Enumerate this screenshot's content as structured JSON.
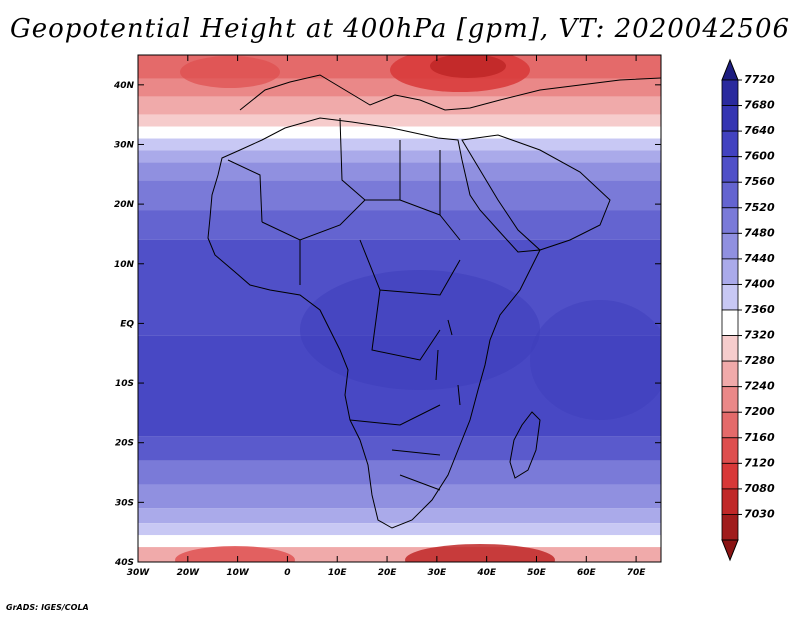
{
  "title": "Geopotential Height at 400hPa [gpm], VT: 2020042506",
  "credit": "GrADS: IGES/COLA",
  "map": {
    "lat_labels": [
      "40N",
      "30N",
      "20N",
      "10N",
      "EQ",
      "10S",
      "20S",
      "30S",
      "40S"
    ],
    "lon_labels": [
      "30W",
      "20W",
      "10W",
      "0",
      "10E",
      "20E",
      "30E",
      "40E",
      "50E",
      "60E",
      "70E"
    ],
    "extent": {
      "lon": [
        -30,
        75
      ],
      "lat": [
        -40,
        45
      ]
    }
  },
  "colorbar": {
    "labels": [
      "7720",
      "7680",
      "7640",
      "7600",
      "7560",
      "7520",
      "7480",
      "7440",
      "7400",
      "7360",
      "7320",
      "7280",
      "7240",
      "7200",
      "7160",
      "7120",
      "7080",
      "7030"
    ],
    "colors": [
      "#2a2a9e",
      "#3535b2",
      "#4242c0",
      "#5050c8",
      "#6464d0",
      "#7a7ad8",
      "#9090e0",
      "#aaaaea",
      "#c8c8f4",
      "#ffffff",
      "#f6cccc",
      "#f0aaaa",
      "#ea8888",
      "#e46a6a",
      "#de4e4e",
      "#d83838",
      "#c02828",
      "#a01c1c"
    ]
  },
  "bands": [
    {
      "lat_top": 45,
      "lat_bot": 41,
      "color": "#e46a6a"
    },
    {
      "lat_top": 41,
      "lat_bot": 38,
      "color": "#ea8888"
    },
    {
      "lat_top": 38,
      "lat_bot": 35,
      "color": "#f0aaaa"
    },
    {
      "lat_top": 35,
      "lat_bot": 33,
      "color": "#f6cccc"
    },
    {
      "lat_top": 33,
      "lat_bot": 31,
      "color": "#ffffff"
    },
    {
      "lat_top": 31,
      "lat_bot": 29,
      "color": "#c8c8f4"
    },
    {
      "lat_top": 29,
      "lat_bot": 27,
      "color": "#aaaaea"
    },
    {
      "lat_top": 27,
      "lat_bot": 24,
      "color": "#9090e0"
    },
    {
      "lat_top": 24,
      "lat_bot": 19,
      "color": "#7a7ad8"
    },
    {
      "lat_top": 19,
      "lat_bot": 14,
      "color": "#6464d0"
    },
    {
      "lat_top": 14,
      "lat_bot": -2,
      "color": "#5050c8"
    },
    {
      "lat_top": -2,
      "lat_bot": -19,
      "color": "#4848c4"
    },
    {
      "lat_top": -19,
      "lat_bot": -23,
      "color": "#5a5acc"
    },
    {
      "lat_top": -23,
      "lat_bot": -27,
      "color": "#7a7ad8"
    },
    {
      "lat_top": -27,
      "lat_bot": -31,
      "color": "#9090e0"
    },
    {
      "lat_top": -31,
      "lat_bot": -33.5,
      "color": "#aaaaea"
    },
    {
      "lat_top": -33.5,
      "lat_bot": -35.5,
      "color": "#c8c8f4"
    },
    {
      "lat_top": -35.5,
      "lat_bot": -37.5,
      "color": "#ffffff"
    },
    {
      "lat_top": -37.5,
      "lat_bot": -40,
      "color": "#f0aaaa"
    }
  ]
}
